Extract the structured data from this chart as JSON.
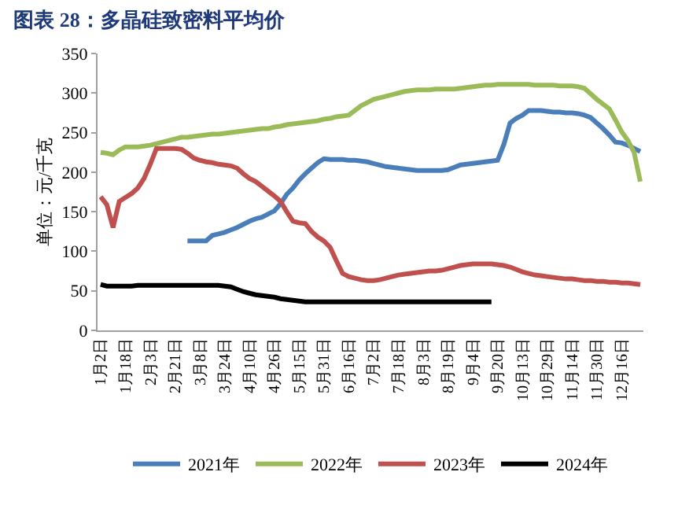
{
  "chart_data": {
    "type": "line",
    "title": "图表 28：多晶硅致密料平均价",
    "ylabel": "单位：元/千克",
    "categories": [
      "1月2日",
      null,
      null,
      null,
      "1月18日",
      null,
      null,
      null,
      "2月3日",
      null,
      null,
      null,
      "2月21日",
      null,
      null,
      null,
      "3月8日",
      null,
      null,
      null,
      "3月24日",
      null,
      null,
      null,
      "4月10日",
      null,
      null,
      null,
      "4月26日",
      null,
      null,
      null,
      "5月15日",
      null,
      null,
      null,
      "5月31日",
      null,
      null,
      null,
      "6月16日",
      null,
      null,
      null,
      "7月2日",
      null,
      null,
      null,
      "7月18日",
      null,
      null,
      null,
      "8月3日",
      null,
      null,
      null,
      "8月19日",
      null,
      null,
      null,
      "9月4日",
      null,
      null,
      null,
      "9月20日",
      null,
      null,
      null,
      "10月13日",
      null,
      null,
      null,
      "10月29日",
      null,
      null,
      null,
      "11月14日",
      null,
      null,
      null,
      "11月30日",
      null,
      null,
      null,
      "12月16日",
      null,
      null,
      null
    ],
    "series": [
      {
        "name": "2021年",
        "color": "#4a7ebb",
        "values": [
          null,
          null,
          null,
          null,
          null,
          null,
          null,
          null,
          null,
          null,
          null,
          null,
          null,
          null,
          113,
          113,
          113,
          113,
          120,
          122,
          124,
          127,
          130,
          134,
          138,
          141,
          143,
          147,
          151,
          160,
          172,
          180,
          190,
          198,
          205,
          212,
          217,
          216,
          216,
          216,
          215,
          215,
          214,
          213,
          211,
          209,
          207,
          206,
          205,
          204,
          203,
          202,
          202,
          202,
          202,
          202,
          203,
          206,
          209,
          210,
          211,
          212,
          213,
          214,
          215,
          235,
          262,
          268,
          272,
          278,
          278,
          278,
          277,
          276,
          276,
          275,
          275,
          274,
          272,
          269,
          262,
          255,
          247,
          238,
          237,
          234,
          230,
          226
        ]
      },
      {
        "name": "2022年",
        "color": "#9bbb59",
        "values": [
          225,
          224,
          222,
          228,
          232,
          232,
          232,
          233,
          234,
          236,
          238,
          240,
          242,
          244,
          244,
          245,
          246,
          247,
          248,
          248,
          249,
          250,
          251,
          252,
          253,
          254,
          255,
          255,
          257,
          258,
          260,
          261,
          262,
          263,
          264,
          265,
          267,
          268,
          270,
          271,
          272,
          278,
          284,
          288,
          292,
          294,
          296,
          298,
          300,
          302,
          303,
          304,
          304,
          304,
          305,
          305,
          305,
          305,
          306,
          307,
          308,
          309,
          310,
          310,
          311,
          311,
          311,
          311,
          311,
          311,
          310,
          310,
          310,
          310,
          309,
          309,
          309,
          308,
          306,
          299,
          292,
          286,
          280,
          266,
          251,
          240,
          225,
          188
        ]
      },
      {
        "name": "2023年",
        "color": "#c0504d",
        "values": [
          169,
          159,
          130,
          163,
          168,
          173,
          180,
          192,
          210,
          230,
          230,
          230,
          230,
          229,
          224,
          218,
          215,
          213,
          212,
          210,
          209,
          208,
          205,
          198,
          192,
          188,
          182,
          176,
          170,
          163,
          150,
          138,
          136,
          135,
          125,
          118,
          113,
          105,
          88,
          72,
          68,
          66,
          64,
          63,
          63,
          64,
          66,
          68,
          70,
          71,
          72,
          73,
          74,
          75,
          75,
          76,
          78,
          80,
          82,
          83,
          84,
          84,
          84,
          84,
          83,
          82,
          80,
          77,
          74,
          72,
          70,
          69,
          68,
          67,
          66,
          65,
          65,
          64,
          63,
          63,
          62,
          62,
          61,
          61,
          60,
          60,
          59,
          58
        ]
      },
      {
        "name": "2024年",
        "color": "#000000",
        "values": [
          58,
          56,
          56,
          56,
          56,
          56,
          57,
          57,
          57,
          57,
          57,
          57,
          57,
          57,
          57,
          57,
          57,
          57,
          57,
          57,
          56,
          55,
          52,
          49,
          47,
          45,
          44,
          43,
          42,
          40,
          39,
          38,
          37,
          36,
          36,
          36,
          36,
          36,
          36,
          36,
          36,
          36,
          36,
          36,
          36,
          36,
          36,
          36,
          36,
          36,
          36,
          36,
          36,
          36,
          36,
          36,
          36,
          36,
          36,
          36,
          36,
          36,
          36,
          36,
          null,
          null,
          null,
          null,
          null,
          null,
          null,
          null,
          null,
          null,
          null,
          null,
          null,
          null,
          null,
          null,
          null,
          null,
          null,
          null,
          null,
          null,
          null,
          null
        ]
      }
    ],
    "ylim": [
      0,
      350
    ],
    "yticks": [
      0,
      50,
      100,
      150,
      200,
      250,
      300,
      350
    ],
    "grid": false,
    "legend": "bottom",
    "marker": "none",
    "line_style": "solid"
  }
}
